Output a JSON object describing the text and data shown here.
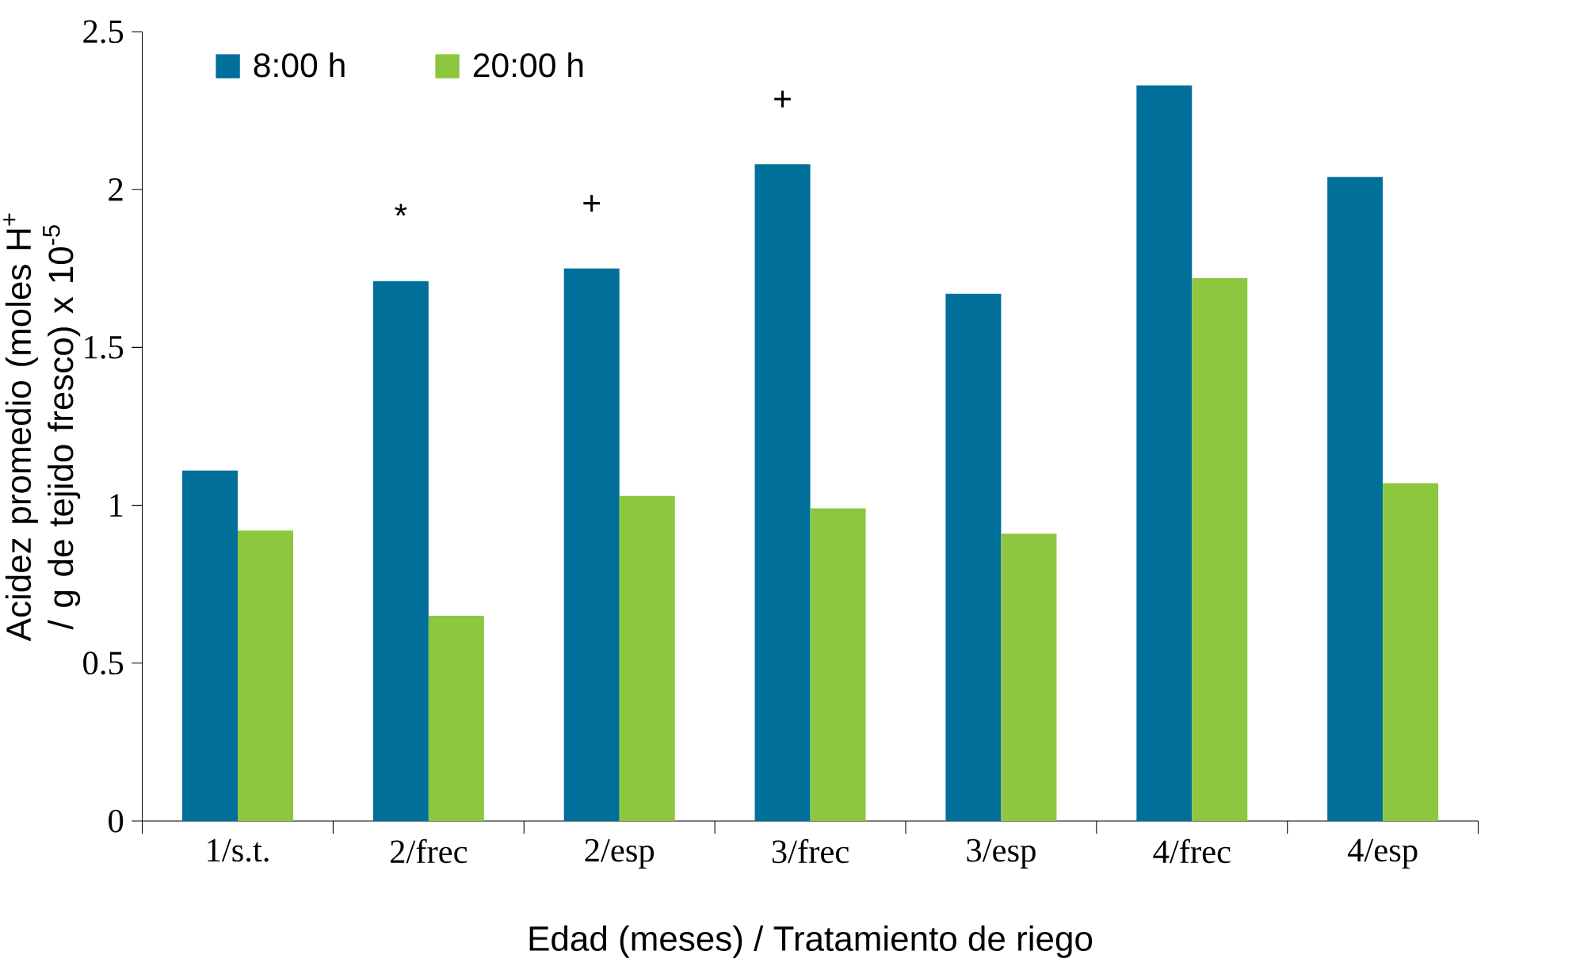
{
  "chart_data": {
    "type": "bar",
    "xlabel": "Edad (meses) / Tratamiento de riego",
    "ylabel": "Acidez promedio (moles H$^{+}$ / g de tejido fresco) x 10$^{-5}$",
    "categories": [
      "1/s.t.",
      "2/frec",
      "2/esp",
      "3/frec",
      "3/esp",
      "4/frec",
      "4/esp"
    ],
    "series": [
      {
        "name": "8:00 h",
        "color": "#006f9a",
        "values": [
          1.11,
          1.71,
          1.75,
          2.08,
          1.67,
          2.33,
          2.04
        ]
      },
      {
        "name": "20:00 h",
        "color": "#8dc63f",
        "values": [
          0.92,
          0.65,
          1.03,
          0.99,
          0.91,
          1.72,
          1.07
        ]
      }
    ],
    "ylim": [
      0,
      2.5
    ],
    "yticks": [
      0,
      0.5,
      1,
      1.5,
      2,
      2.5
    ],
    "grid": false,
    "legend": "top left",
    "annotations": [
      {
        "text": "*",
        "x": "2/frec",
        "y": 1.71
      },
      {
        "text": "+",
        "x": "2/esp",
        "y": 1.75
      },
      {
        "text": "+",
        "x": "3/frec",
        "y": 2.08
      }
    ]
  }
}
